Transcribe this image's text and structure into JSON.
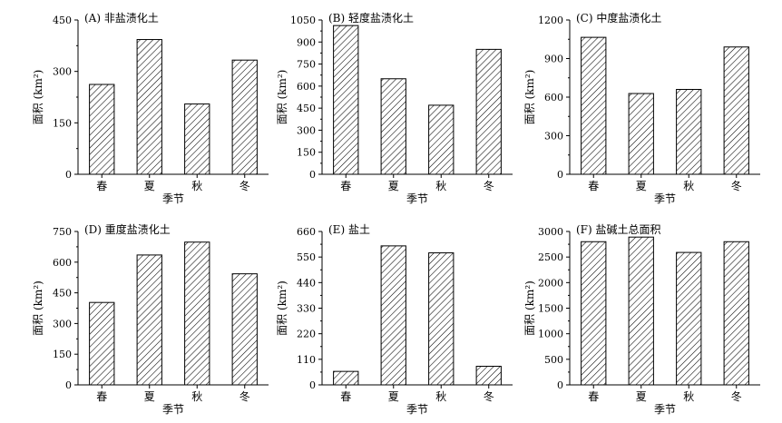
{
  "chart_data": [
    {
      "type": "bar",
      "title": "(A) 非盐渍化土",
      "categories": [
        "春",
        "夏",
        "秋",
        "冬"
      ],
      "values": [
        262,
        393,
        205,
        333
      ],
      "xlabel": "季节",
      "ylabel": "面积 (km²)",
      "ylim": [
        0,
        450
      ],
      "yticks": [
        0,
        150,
        300,
        450
      ],
      "grid": false
    },
    {
      "type": "bar",
      "title": "(B) 轻度盐渍化土",
      "categories": [
        "春",
        "夏",
        "秋",
        "冬"
      ],
      "values": [
        1012,
        650,
        470,
        850
      ],
      "xlabel": "季节",
      "ylabel": "面积 (km²)",
      "ylim": [
        0,
        1050
      ],
      "yticks": [
        0,
        150,
        300,
        450,
        600,
        750,
        900,
        1050
      ],
      "grid": false
    },
    {
      "type": "bar",
      "title": "(C) 中度盐渍化土",
      "categories": [
        "春",
        "夏",
        "秋",
        "冬"
      ],
      "values": [
        1065,
        628,
        660,
        990
      ],
      "xlabel": "季节",
      "ylabel": "面积 (km²)",
      "ylim": [
        0,
        1200
      ],
      "yticks": [
        0,
        300,
        600,
        900,
        1200
      ],
      "grid": false
    },
    {
      "type": "bar",
      "title": "(D) 重度盐渍化土",
      "categories": [
        "春",
        "夏",
        "秋",
        "冬"
      ],
      "values": [
        403,
        635,
        698,
        543
      ],
      "xlabel": "季节",
      "ylabel": "面积 (km²)",
      "ylim": [
        0,
        750
      ],
      "yticks": [
        0,
        150,
        300,
        450,
        600,
        750
      ],
      "grid": false
    },
    {
      "type": "bar",
      "title": "(E) 盐土",
      "categories": [
        "春",
        "夏",
        "秋",
        "冬"
      ],
      "values": [
        58,
        598,
        568,
        80
      ],
      "xlabel": "季节",
      "ylabel": "面积 (km²)",
      "ylim": [
        0,
        660
      ],
      "yticks": [
        0,
        110,
        220,
        330,
        440,
        550,
        660
      ],
      "grid": false
    },
    {
      "type": "bar",
      "title": "(F) 盐碱土总面积",
      "categories": [
        "春",
        "夏",
        "秋",
        "冬"
      ],
      "values": [
        2800,
        2890,
        2590,
        2800
      ],
      "xlabel": "季节",
      "ylabel": "面积 (km²)",
      "ylim": [
        0,
        3000
      ],
      "yticks": [
        0,
        500,
        1000,
        1500,
        2000,
        2500,
        3000
      ],
      "grid": false
    }
  ],
  "colors": {
    "bar_fill": "#ffffff",
    "hatch": "#000000",
    "axis": "#000000"
  }
}
